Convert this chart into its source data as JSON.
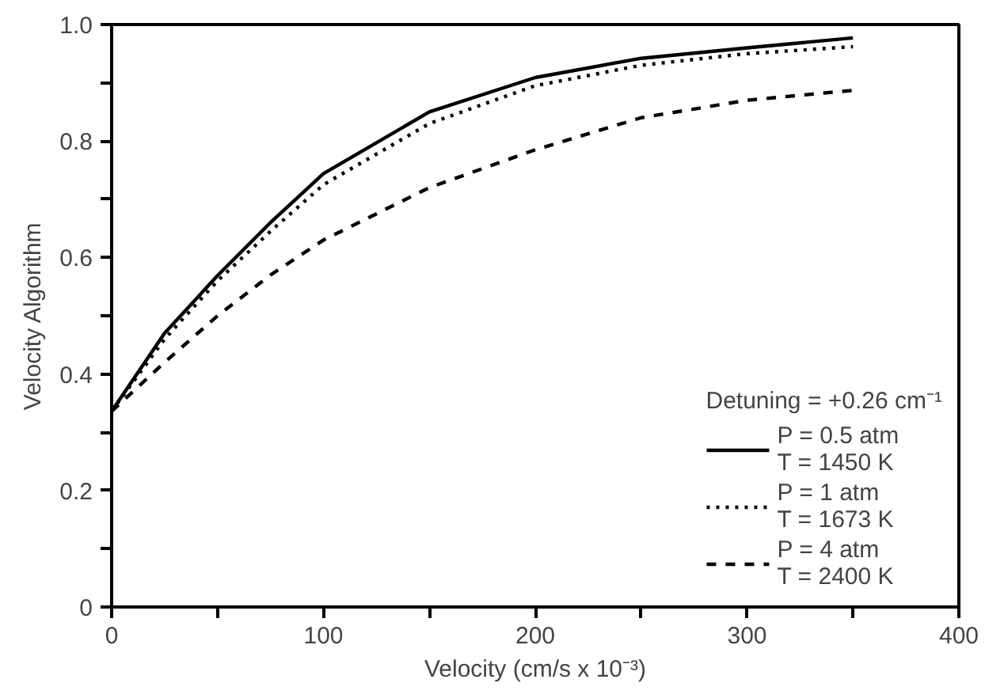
{
  "chart_data": {
    "type": "line",
    "xlabel": "Velocity (cm/s x 10⁻³)",
    "ylabel": "Velocity Algorithm",
    "legend_title": "Detuning = +0.26 cm⁻¹",
    "legend": "bottom right",
    "grid": false,
    "x": [
      0,
      25,
      50,
      75,
      100,
      150,
      200,
      250,
      300,
      350
    ],
    "xlim": [
      0,
      400
    ],
    "ylim": [
      0,
      1.0
    ],
    "xticks": [
      0,
      {
        "value": 50,
        "label": null
      },
      100,
      {
        "value": 150,
        "label": null
      },
      200,
      {
        "value": 250,
        "label": null
      },
      300,
      {
        "value": 350,
        "label": null
      },
      400
    ],
    "yticks": [
      0,
      {
        "value": 0.1,
        "label": null
      },
      0.2,
      {
        "value": 0.3,
        "label": null
      },
      0.4,
      {
        "value": 0.5,
        "label": null
      },
      0.6,
      {
        "value": 0.7,
        "label": null
      },
      0.8,
      {
        "value": 0.9,
        "label": null
      },
      "1.0"
    ],
    "series": [
      {
        "name": "P = 0.5 atm\nT = 1450 K",
        "color": "#000000",
        "line_style": "solid",
        "values": [
          0.336,
          0.47,
          0.569,
          0.66,
          0.744,
          0.85,
          0.909,
          0.942,
          0.96,
          0.977
        ]
      },
      {
        "name": "P = 1 atm\nT = 1673 K",
        "color": "#000000",
        "line_style": "dotted",
        "values": [
          0.336,
          0.46,
          0.56,
          0.645,
          0.725,
          0.83,
          0.895,
          0.93,
          0.95,
          0.962
        ]
      },
      {
        "name": "P = 4 atm\nT = 2400 K",
        "color": "#000000",
        "line_style": "dashed",
        "values": [
          0.336,
          0.42,
          0.5,
          0.57,
          0.63,
          0.72,
          0.785,
          0.84,
          0.87,
          0.887
        ]
      }
    ]
  }
}
